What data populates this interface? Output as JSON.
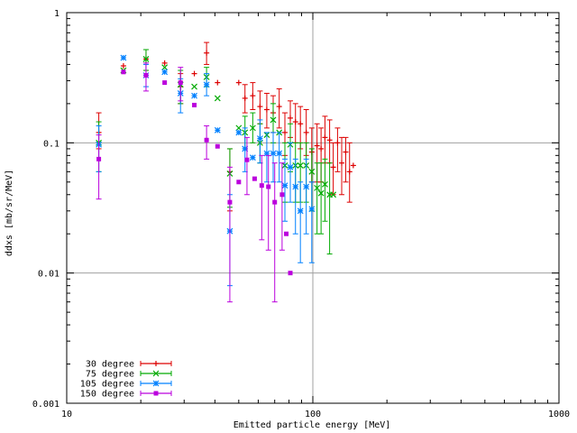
{
  "chart_data": {
    "type": "scatter",
    "xlabel": "Emitted particle energy [MeV]",
    "ylabel": "ddxs [mb/sr/MeV]",
    "x_scale": "log",
    "y_scale": "log",
    "xlim": [
      10,
      1000
    ],
    "ylim": [
      0.001,
      1
    ],
    "x_ticks": [
      {
        "value": 10,
        "label": "10"
      },
      {
        "value": 100,
        "label": "100"
      },
      {
        "value": 1000,
        "label": "1000"
      }
    ],
    "y_ticks": [
      {
        "value": 0.001,
        "label": "0.001"
      },
      {
        "value": 0.01,
        "label": "0.01"
      },
      {
        "value": 0.1,
        "label": "0.1"
      },
      {
        "value": 1,
        "label": "1"
      }
    ],
    "grid": {
      "major_x": [
        100
      ],
      "major_y": [
        0.01,
        0.1
      ]
    },
    "legend_position": "bottom-left",
    "series": [
      {
        "name": "30 degree",
        "color": "#dd0000",
        "marker": "plus",
        "points": [
          {
            "x": 13.5,
            "y": 0.12,
            "ylo": 0.09,
            "yhi": 0.17
          },
          {
            "x": 17,
            "y": 0.39
          },
          {
            "x": 21,
            "y": 0.44,
            "ylo": 0.36,
            "yhi": 0.52
          },
          {
            "x": 25,
            "y": 0.41
          },
          {
            "x": 29,
            "y": 0.27,
            "ylo": 0.2,
            "yhi": 0.34
          },
          {
            "x": 33,
            "y": 0.34
          },
          {
            "x": 37,
            "y": 0.49,
            "ylo": 0.4,
            "yhi": 0.59
          },
          {
            "x": 41,
            "y": 0.29
          },
          {
            "x": 46,
            "y": 0.06,
            "ylo": 0.03,
            "yhi": 0.09
          },
          {
            "x": 50,
            "y": 0.29
          },
          {
            "x": 53,
            "y": 0.22,
            "ylo": 0.17,
            "yhi": 0.28
          },
          {
            "x": 57,
            "y": 0.23,
            "ylo": 0.18,
            "yhi": 0.29
          },
          {
            "x": 61,
            "y": 0.19,
            "ylo": 0.14,
            "yhi": 0.25
          },
          {
            "x": 65,
            "y": 0.18,
            "ylo": 0.13,
            "yhi": 0.24
          },
          {
            "x": 69,
            "y": 0.17,
            "ylo": 0.12,
            "yhi": 0.23
          },
          {
            "x": 73,
            "y": 0.19,
            "ylo": 0.13,
            "yhi": 0.26
          },
          {
            "x": 77,
            "y": 0.12,
            "ylo": 0.08,
            "yhi": 0.17
          },
          {
            "x": 81,
            "y": 0.155,
            "ylo": 0.11,
            "yhi": 0.21
          },
          {
            "x": 85,
            "y": 0.145,
            "ylo": 0.1,
            "yhi": 0.2
          },
          {
            "x": 89,
            "y": 0.14,
            "ylo": 0.09,
            "yhi": 0.19
          },
          {
            "x": 94,
            "y": 0.12,
            "ylo": 0.08,
            "yhi": 0.18
          },
          {
            "x": 99,
            "y": 0.085,
            "ylo": 0.05,
            "yhi": 0.13
          },
          {
            "x": 104,
            "y": 0.095,
            "ylo": 0.05,
            "yhi": 0.14
          },
          {
            "x": 108,
            "y": 0.09,
            "ylo": 0.05,
            "yhi": 0.13
          },
          {
            "x": 112,
            "y": 0.11,
            "ylo": 0.07,
            "yhi": 0.16
          },
          {
            "x": 117,
            "y": 0.105,
            "ylo": 0.07,
            "yhi": 0.15
          },
          {
            "x": 121,
            "y": 0.065,
            "ylo": 0.04,
            "yhi": 0.1
          },
          {
            "x": 126,
            "y": 0.1,
            "ylo": 0.06,
            "yhi": 0.13
          },
          {
            "x": 131,
            "y": 0.07,
            "ylo": 0.04,
            "yhi": 0.11
          },
          {
            "x": 136,
            "y": 0.085,
            "ylo": 0.05,
            "yhi": 0.11
          },
          {
            "x": 141,
            "y": 0.06,
            "ylo": 0.035,
            "yhi": 0.1
          },
          {
            "x": 146,
            "y": 0.067
          }
        ]
      },
      {
        "name": "75 degree",
        "color": "#00aa00",
        "marker": "cross",
        "points": [
          {
            "x": 13.5,
            "y": 0.1,
            "ylo": 0.06,
            "yhi": 0.145
          },
          {
            "x": 17,
            "y": 0.36
          },
          {
            "x": 21,
            "y": 0.44,
            "ylo": 0.36,
            "yhi": 0.52
          },
          {
            "x": 25,
            "y": 0.38
          },
          {
            "x": 29,
            "y": 0.28,
            "ylo": 0.2,
            "yhi": 0.36
          },
          {
            "x": 33,
            "y": 0.27
          },
          {
            "x": 37,
            "y": 0.32,
            "ylo": 0.27,
            "yhi": 0.38
          },
          {
            "x": 41,
            "y": 0.22
          },
          {
            "x": 46,
            "y": 0.058,
            "ylo": 0.032,
            "yhi": 0.09
          },
          {
            "x": 50,
            "y": 0.13
          },
          {
            "x": 53,
            "y": 0.12,
            "ylo": 0.09,
            "yhi": 0.16
          },
          {
            "x": 57,
            "y": 0.13,
            "ylo": 0.1,
            "yhi": 0.17
          },
          {
            "x": 61,
            "y": 0.1,
            "ylo": 0.07,
            "yhi": 0.14
          },
          {
            "x": 65,
            "y": 0.115
          },
          {
            "x": 69,
            "y": 0.15,
            "ylo": 0.1,
            "yhi": 0.2
          },
          {
            "x": 73,
            "y": 0.12
          },
          {
            "x": 77,
            "y": 0.067,
            "ylo": 0.035,
            "yhi": 0.1
          },
          {
            "x": 81,
            "y": 0.097,
            "ylo": 0.06,
            "yhi": 0.14
          },
          {
            "x": 85,
            "y": 0.067,
            "ylo": 0.035,
            "yhi": 0.1
          },
          {
            "x": 89,
            "y": 0.067,
            "ylo": 0.035,
            "yhi": 0.1
          },
          {
            "x": 94,
            "y": 0.067,
            "ylo": 0.035,
            "yhi": 0.1
          },
          {
            "x": 99,
            "y": 0.06,
            "ylo": 0.03,
            "yhi": 0.09
          },
          {
            "x": 104,
            "y": 0.045,
            "ylo": 0.02,
            "yhi": 0.07
          },
          {
            "x": 108,
            "y": 0.041,
            "ylo": 0.02,
            "yhi": 0.07
          },
          {
            "x": 112,
            "y": 0.048,
            "ylo": 0.025,
            "yhi": 0.075
          },
          {
            "x": 117,
            "y": 0.04,
            "ylo": 0.014,
            "yhi": 0.07
          },
          {
            "x": 121,
            "y": 0.04
          }
        ]
      },
      {
        "name": "105 degree",
        "color": "#0080ff",
        "marker": "star",
        "points": [
          {
            "x": 13.5,
            "y": 0.097,
            "ylo": 0.06,
            "yhi": 0.135
          },
          {
            "x": 17,
            "y": 0.45
          },
          {
            "x": 21,
            "y": 0.33,
            "ylo": 0.27,
            "yhi": 0.4
          },
          {
            "x": 25,
            "y": 0.35
          },
          {
            "x": 29,
            "y": 0.24,
            "ylo": 0.17,
            "yhi": 0.31
          },
          {
            "x": 33,
            "y": 0.23
          },
          {
            "x": 37,
            "y": 0.28,
            "ylo": 0.23,
            "yhi": 0.34
          },
          {
            "x": 41,
            "y": 0.125
          },
          {
            "x": 46,
            "y": 0.021,
            "ylo": 0.008,
            "yhi": 0.04
          },
          {
            "x": 50,
            "y": 0.12
          },
          {
            "x": 53,
            "y": 0.09,
            "ylo": 0.06,
            "yhi": 0.13
          },
          {
            "x": 57,
            "y": 0.077
          },
          {
            "x": 61,
            "y": 0.108,
            "ylo": 0.07,
            "yhi": 0.15
          },
          {
            "x": 65,
            "y": 0.083,
            "ylo": 0.05,
            "yhi": 0.12
          },
          {
            "x": 69,
            "y": 0.083,
            "ylo": 0.05,
            "yhi": 0.12
          },
          {
            "x": 73,
            "y": 0.083,
            "ylo": 0.05,
            "yhi": 0.12
          },
          {
            "x": 77,
            "y": 0.047,
            "ylo": 0.025,
            "yhi": 0.075
          },
          {
            "x": 81,
            "y": 0.065,
            "ylo": 0.035,
            "yhi": 0.1
          },
          {
            "x": 85,
            "y": 0.046,
            "ylo": 0.02,
            "yhi": 0.075
          },
          {
            "x": 89,
            "y": 0.03,
            "ylo": 0.012,
            "yhi": 0.05
          },
          {
            "x": 94,
            "y": 0.046,
            "ylo": 0.02,
            "yhi": 0.075
          },
          {
            "x": 99,
            "y": 0.031,
            "ylo": 0.012,
            "yhi": 0.05
          }
        ]
      },
      {
        "name": "150 degree",
        "color": "#bb00dd",
        "marker": "square",
        "points": [
          {
            "x": 13.5,
            "y": 0.075,
            "ylo": 0.037,
            "yhi": 0.115
          },
          {
            "x": 17,
            "y": 0.35
          },
          {
            "x": 21,
            "y": 0.33,
            "ylo": 0.25,
            "yhi": 0.41
          },
          {
            "x": 25,
            "y": 0.29
          },
          {
            "x": 29,
            "y": 0.29,
            "ylo": 0.21,
            "yhi": 0.38
          },
          {
            "x": 33,
            "y": 0.195
          },
          {
            "x": 37,
            "y": 0.105,
            "ylo": 0.075,
            "yhi": 0.135
          },
          {
            "x": 41,
            "y": 0.094
          },
          {
            "x": 46,
            "y": 0.035,
            "ylo": 0.006,
            "yhi": 0.065
          },
          {
            "x": 50,
            "y": 0.05
          },
          {
            "x": 54,
            "y": 0.074,
            "ylo": 0.04,
            "yhi": 0.11
          },
          {
            "x": 58,
            "y": 0.053
          },
          {
            "x": 62,
            "y": 0.047,
            "ylo": 0.018,
            "yhi": 0.08
          },
          {
            "x": 66,
            "y": 0.046,
            "ylo": 0.015,
            "yhi": 0.08
          },
          {
            "x": 70,
            "y": 0.035,
            "ylo": 0.006,
            "yhi": 0.07
          },
          {
            "x": 75,
            "y": 0.04,
            "ylo": 0.015,
            "yhi": 0.07
          },
          {
            "x": 78,
            "y": 0.02
          },
          {
            "x": 81,
            "y": 0.01
          }
        ]
      }
    ]
  }
}
